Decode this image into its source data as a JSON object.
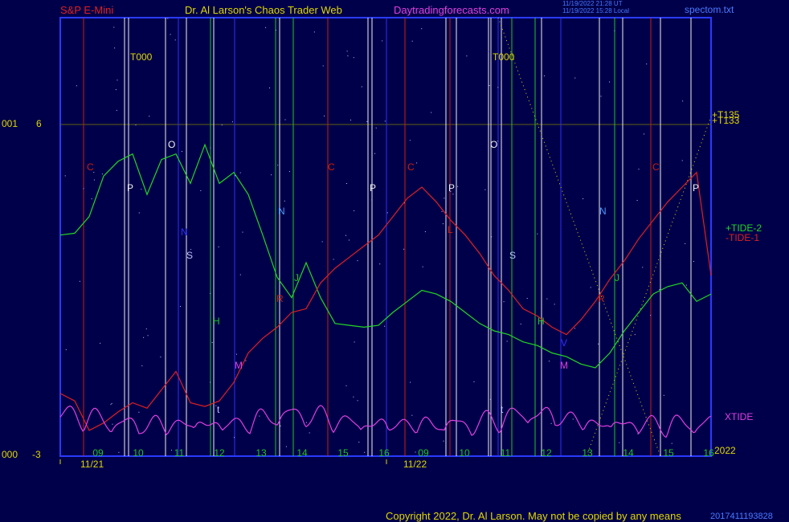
{
  "header": {
    "symbol": "S&P E-Mini",
    "site_name": "Dr. Al Larson's Chaos Trader Web",
    "site_url": "Daytradingforecasts.com",
    "time_utc": "11/19/2022 21:28 UT",
    "time_local": "11/19/2022 15:28 Local",
    "file": "spectom.txt"
  },
  "footer": {
    "copyright": "Copyright 2022, Dr. Al Larson. May not be copied by any means",
    "code": "2017411193828"
  },
  "colors": {
    "background": "#00004a",
    "frame": "#2a3aff",
    "tide_plus2": "#22d822",
    "tide_minus1": "#e02020",
    "xtide": "#e040e0",
    "white_line": "#f0f0f0",
    "green_line": "#22c422",
    "red_line": "#c82010",
    "blue_line": "#3030ff",
    "yellow_text": "#e0d800",
    "magenta_text": "#e040e0"
  },
  "chart_data": {
    "type": "line",
    "y_axis": {
      "top_value": "6",
      "bottom_value": "-3",
      "top_code": "001",
      "bottom_code": "000",
      "reference_line_at": 6
    },
    "year_label": "2022",
    "day_labels": [
      "11/21",
      "11/22"
    ],
    "hour_ticks": [
      "09",
      "10",
      "11",
      "12",
      "13",
      "14",
      "15",
      "16",
      "09",
      "10",
      "11",
      "12",
      "13",
      "14",
      "15",
      "16"
    ],
    "series": [
      {
        "name": "+TIDE-2",
        "label": "+TIDE-2",
        "color": "#22d822",
        "values": [
          3.0,
          3.05,
          3.5,
          4.6,
          5.0,
          5.2,
          4.1,
          5.05,
          5.2,
          4.4,
          5.45,
          4.4,
          4.7,
          4.1,
          3.0,
          1.85,
          1.3,
          2.25,
          1.3,
          0.6,
          0.55,
          0.5,
          0.55,
          0.9,
          1.2,
          1.5,
          1.4,
          1.2,
          0.9,
          0.6,
          0.4,
          0.3,
          0.1,
          0.0,
          -0.2,
          -0.3,
          -0.5,
          -0.6,
          -0.2,
          0.4,
          0.9,
          1.4,
          1.6,
          1.7,
          1.2,
          1.4
        ]
      },
      {
        "name": "-TIDE-1",
        "label": "-TIDE-1",
        "color": "#e02020",
        "values": [
          -1.3,
          -1.5,
          -2.3,
          -2.1,
          -1.8,
          -1.55,
          -1.7,
          -1.2,
          -0.7,
          -1.55,
          -1.65,
          -1.5,
          -1.0,
          -0.2,
          0.2,
          0.5,
          0.9,
          1.0,
          1.7,
          2.1,
          2.4,
          2.7,
          3.0,
          3.5,
          4.0,
          4.3,
          3.9,
          3.4,
          3.0,
          2.5,
          1.9,
          1.5,
          1.0,
          0.8,
          0.5,
          0.3,
          0.7,
          1.2,
          1.8,
          2.3,
          2.9,
          3.4,
          3.9,
          4.3,
          4.7,
          1.9
        ]
      },
      {
        "name": "XTIDE",
        "label": "XTIDE",
        "color": "#e040e0"
      }
    ],
    "labels": {
      "t135": "+T135",
      "t135b": "+T133",
      "t000": "T000",
      "letters": [
        "C",
        "P",
        "O",
        "S",
        "H",
        "M",
        "N",
        "J",
        "R",
        "t",
        "V",
        "L"
      ]
    },
    "grid": false,
    "legend": "right"
  }
}
